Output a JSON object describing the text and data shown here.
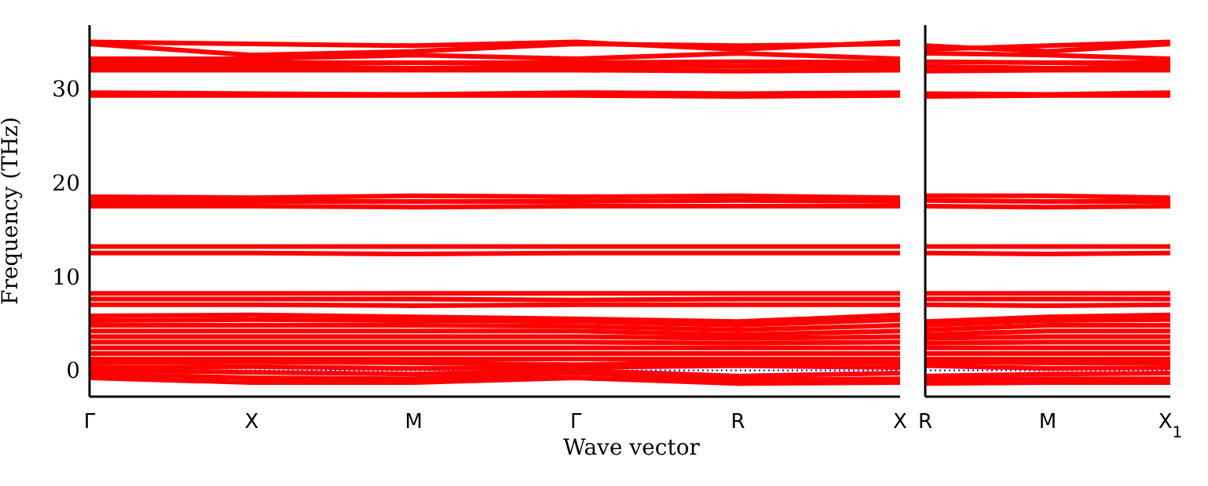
{
  "chart_data": [
    {
      "type": "line",
      "xlabel": "Wave vector",
      "ylabel": "Frequency (THz)",
      "categories": [
        "Γ",
        "X",
        "M",
        "Γ",
        "R",
        "X"
      ],
      "ylim": [
        -2.8,
        36.8
      ],
      "yticks": [
        0,
        10,
        20,
        30
      ],
      "grid": false,
      "legend": false,
      "marker": "none",
      "line_style": "solid",
      "ref_lines": [
        {
          "axis": "y",
          "value": 0,
          "color": "#0000ff",
          "line_style": "dotted"
        }
      ],
      "series": [
        {
          "color": "#ff0000",
          "values": [
            35.0,
            34.8,
            34.6,
            35.0,
            34.2,
            35.0
          ]
        },
        {
          "color": "#ff0000",
          "values": [
            34.8,
            33.6,
            34.0,
            34.8,
            34.6,
            34.8
          ]
        },
        {
          "color": "#ff0000",
          "values": [
            33.2,
            33.2,
            33.6,
            33.2,
            33.8,
            33.2
          ]
        },
        {
          "color": "#ff0000",
          "values": [
            32.8,
            32.8,
            32.8,
            32.8,
            32.9,
            32.8
          ]
        },
        {
          "color": "#ff0000",
          "values": [
            32.4,
            32.4,
            32.2,
            32.4,
            32.4,
            32.4
          ]
        },
        {
          "color": "#ff0000",
          "values": [
            32.0,
            32.0,
            32.0,
            32.0,
            31.9,
            32.0
          ]
        },
        {
          "color": "#ff0000",
          "values": [
            29.6,
            29.5,
            29.4,
            29.6,
            29.5,
            29.6
          ]
        },
        {
          "color": "#ff0000",
          "values": [
            29.3,
            29.3,
            29.3,
            29.3,
            29.2,
            29.3
          ]
        },
        {
          "color": "#ff0000",
          "values": [
            18.5,
            18.4,
            18.6,
            18.5,
            18.6,
            18.4
          ]
        },
        {
          "color": "#ff0000",
          "values": [
            18.0,
            18.0,
            18.0,
            18.0,
            18.1,
            18.0
          ]
        },
        {
          "color": "#ff0000",
          "values": [
            17.5,
            17.5,
            17.4,
            17.5,
            17.5,
            17.5
          ]
        },
        {
          "color": "#ff0000",
          "values": [
            13.2,
            13.2,
            13.2,
            13.2,
            13.2,
            13.2
          ]
        },
        {
          "color": "#ff0000",
          "values": [
            12.5,
            12.5,
            12.4,
            12.5,
            12.5,
            12.5
          ]
        },
        {
          "color": "#ff0000",
          "values": [
            8.2,
            8.2,
            8.2,
            8.2,
            8.2,
            8.2
          ]
        },
        {
          "color": "#ff0000",
          "values": [
            7.6,
            7.6,
            7.6,
            7.5,
            7.6,
            7.6
          ]
        },
        {
          "color": "#ff0000",
          "values": [
            7.0,
            7.0,
            6.9,
            7.0,
            7.0,
            7.0
          ]
        },
        {
          "color": "#ff0000",
          "values": [
            5.8,
            5.9,
            5.7,
            5.5,
            5.2,
            5.9
          ]
        },
        {
          "color": "#ff0000",
          "values": [
            5.3,
            5.4,
            5.3,
            5.2,
            4.8,
            5.4
          ]
        },
        {
          "color": "#ff0000",
          "values": [
            4.8,
            4.8,
            4.8,
            4.7,
            4.3,
            4.8
          ]
        },
        {
          "color": "#ff0000",
          "values": [
            4.2,
            4.2,
            4.2,
            4.2,
            3.8,
            4.2
          ]
        },
        {
          "color": "#ff0000",
          "values": [
            3.6,
            3.6,
            3.6,
            3.6,
            3.4,
            3.6
          ]
        },
        {
          "color": "#ff0000",
          "values": [
            3.0,
            3.0,
            3.0,
            3.0,
            2.9,
            3.0
          ]
        },
        {
          "color": "#ff0000",
          "values": [
            2.4,
            2.4,
            2.4,
            2.4,
            2.4,
            2.4
          ]
        },
        {
          "color": "#ff0000",
          "values": [
            1.8,
            1.8,
            1.8,
            1.8,
            1.8,
            1.8
          ]
        },
        {
          "color": "#ff0000",
          "values": [
            1.2,
            1.2,
            1.2,
            1.2,
            1.2,
            1.2
          ]
        },
        {
          "color": "#ff0000",
          "values": [
            0.8,
            0.9,
            0.8,
            0.6,
            0.9,
            0.8
          ]
        },
        {
          "color": "#ff0000",
          "values": [
            0.3,
            0.4,
            0.2,
            0.3,
            0.5,
            0.3
          ]
        },
        {
          "color": "#ff0000",
          "values": [
            0.0,
            -0.2,
            -0.4,
            0.0,
            -0.6,
            -0.3
          ]
        },
        {
          "color": "#ff0000",
          "values": [
            -0.4,
            -0.8,
            -0.9,
            -0.3,
            -1.0,
            -0.9
          ]
        },
        {
          "color": "#ff0000",
          "values": [
            -0.8,
            -1.3,
            -1.3,
            -0.8,
            -1.4,
            -1.3
          ]
        }
      ]
    },
    {
      "type": "line",
      "tick_labels": "x",
      "categories": [
        "R",
        "M",
        "X$_{1}$"
      ],
      "ylim": [
        -2.8,
        36.8
      ],
      "yticks": [
        0,
        10,
        20,
        30
      ],
      "grid": false,
      "legend": false,
      "marker": "none",
      "line_style": "solid",
      "ref_lines": [
        {
          "axis": "y",
          "value": 0,
          "color": "#0000ff",
          "line_style": "dotted"
        }
      ],
      "series": [
        {
          "color": "#ff0000",
          "values": [
            34.2,
            34.6,
            35.0
          ]
        },
        {
          "color": "#ff0000",
          "values": [
            34.6,
            34.0,
            34.8
          ]
        },
        {
          "color": "#ff0000",
          "values": [
            33.8,
            33.6,
            33.2
          ]
        },
        {
          "color": "#ff0000",
          "values": [
            32.9,
            32.8,
            32.8
          ]
        },
        {
          "color": "#ff0000",
          "values": [
            32.4,
            32.2,
            32.4
          ]
        },
        {
          "color": "#ff0000",
          "values": [
            31.9,
            32.0,
            32.0
          ]
        },
        {
          "color": "#ff0000",
          "values": [
            29.5,
            29.4,
            29.6
          ]
        },
        {
          "color": "#ff0000",
          "values": [
            29.2,
            29.3,
            29.3
          ]
        },
        {
          "color": "#ff0000",
          "values": [
            18.6,
            18.6,
            18.4
          ]
        },
        {
          "color": "#ff0000",
          "values": [
            18.1,
            18.0,
            18.0
          ]
        },
        {
          "color": "#ff0000",
          "values": [
            17.5,
            17.4,
            17.5
          ]
        },
        {
          "color": "#ff0000",
          "values": [
            13.2,
            13.2,
            13.2
          ]
        },
        {
          "color": "#ff0000",
          "values": [
            12.5,
            12.4,
            12.5
          ]
        },
        {
          "color": "#ff0000",
          "values": [
            8.2,
            8.2,
            8.2
          ]
        },
        {
          "color": "#ff0000",
          "values": [
            7.6,
            7.6,
            7.6
          ]
        },
        {
          "color": "#ff0000",
          "values": [
            7.0,
            6.9,
            7.0
          ]
        },
        {
          "color": "#ff0000",
          "values": [
            5.2,
            5.7,
            5.9
          ]
        },
        {
          "color": "#ff0000",
          "values": [
            4.8,
            5.3,
            5.4
          ]
        },
        {
          "color": "#ff0000",
          "values": [
            4.3,
            4.8,
            4.8
          ]
        },
        {
          "color": "#ff0000",
          "values": [
            3.8,
            4.2,
            4.2
          ]
        },
        {
          "color": "#ff0000",
          "values": [
            3.4,
            3.6,
            3.6
          ]
        },
        {
          "color": "#ff0000",
          "values": [
            2.9,
            3.0,
            3.0
          ]
        },
        {
          "color": "#ff0000",
          "values": [
            2.4,
            2.4,
            2.4
          ]
        },
        {
          "color": "#ff0000",
          "values": [
            1.8,
            1.8,
            1.8
          ]
        },
        {
          "color": "#ff0000",
          "values": [
            1.2,
            1.2,
            1.2
          ]
        },
        {
          "color": "#ff0000",
          "values": [
            0.9,
            0.8,
            0.8
          ]
        },
        {
          "color": "#ff0000",
          "values": [
            0.5,
            0.2,
            0.3
          ]
        },
        {
          "color": "#ff0000",
          "values": [
            -0.6,
            -0.4,
            -0.3
          ]
        },
        {
          "color": "#ff0000",
          "values": [
            -1.0,
            -0.9,
            -0.9
          ]
        },
        {
          "color": "#ff0000",
          "values": [
            -1.4,
            -1.3,
            -1.3
          ]
        }
      ]
    }
  ]
}
